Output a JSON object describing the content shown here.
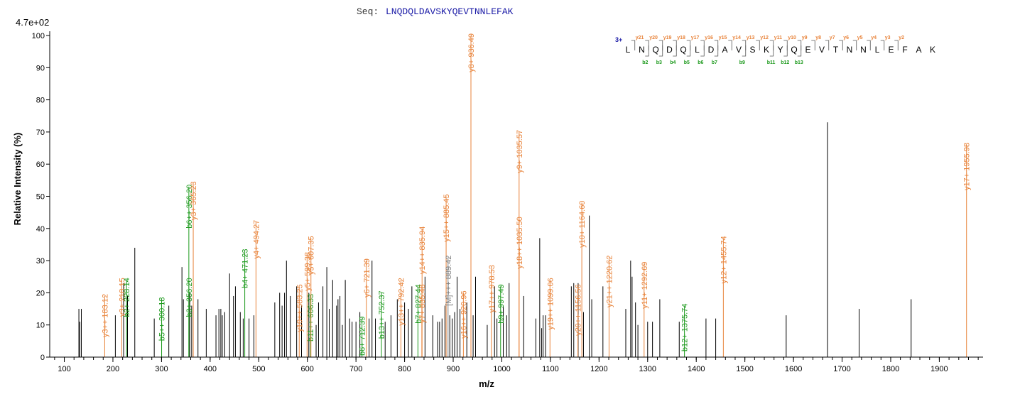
{
  "header": {
    "seq_label": "Seq:",
    "sequence": "LNQDQLDAVSKYQEVTNNLEFAK",
    "scale": "4.7e+02",
    "charge": "3+"
  },
  "colors": {
    "y": "#e8833a",
    "b": "#1e9a1e",
    "other": "#808080",
    "noise": "#000000",
    "charge": "#1a1aa6"
  },
  "chart_data": {
    "type": "bar",
    "title": "",
    "xlabel": "m/z",
    "ylabel": "Relative Intensity (%)",
    "xlim": [
      70,
      1990
    ],
    "ylim": [
      0,
      100
    ],
    "xticks": [
      100,
      200,
      300,
      400,
      500,
      600,
      700,
      800,
      900,
      1000,
      1100,
      1200,
      1300,
      1400,
      1500,
      1600,
      1700,
      1800,
      1900
    ],
    "yticks": [
      0,
      10,
      20,
      30,
      40,
      50,
      60,
      70,
      80,
      90,
      100
    ],
    "annotated_peaks": [
      {
        "mz": 183.12,
        "intensity": 19,
        "type": "y",
        "label": "y3++ 183.12"
      },
      {
        "mz": 218.15,
        "intensity": 24,
        "type": "y",
        "label": "y3+ 218.15"
      },
      {
        "mz": 228.14,
        "intensity": 24,
        "type": "b",
        "label": "b2+ 228.14"
      },
      {
        "mz": 300.18,
        "intensity": 18,
        "type": "b",
        "label": "b5++ 300.18"
      },
      {
        "mz": 356.2,
        "intensity": 24,
        "type": "b",
        "label": "b3+ 356.20"
      },
      {
        "mz": 356.2,
        "intensity": 53,
        "type": "b",
        "label": "b6++ 356.20"
      },
      {
        "mz": 365.23,
        "intensity": 54,
        "type": "y",
        "label": "y3+ 365.23"
      },
      {
        "mz": 471.23,
        "intensity": 33,
        "type": "b",
        "label": "b4+ 471.23"
      },
      {
        "mz": 494.27,
        "intensity": 42,
        "type": "y",
        "label": "y4+ 494.27"
      },
      {
        "mz": 583.25,
        "intensity": 22,
        "type": "y",
        "label": "y10++ 583.25"
      },
      {
        "mz": 599.38,
        "intensity": 32,
        "type": "y",
        "label": "y5+ 599.38"
      },
      {
        "mz": 606.33,
        "intensity": 19,
        "type": "b",
        "label": "b11++ 606.33"
      },
      {
        "mz": 607.35,
        "intensity": 37,
        "type": "y",
        "label": "y5+ 607.35"
      },
      {
        "mz": 712.39,
        "intensity": 12,
        "type": "b",
        "label": "b6+ 712.39"
      },
      {
        "mz": 721.39,
        "intensity": 30,
        "type": "y",
        "label": "y6+ 721.39"
      },
      {
        "mz": 752.37,
        "intensity": 20,
        "type": "b",
        "label": "b13++ 752.37"
      },
      {
        "mz": 792.42,
        "intensity": 24,
        "type": "y",
        "label": "y13++ 792.42"
      },
      {
        "mz": 827.44,
        "intensity": 22,
        "type": "b",
        "label": "b7+ 827.44"
      },
      {
        "mz": 835.48,
        "intensity": 22,
        "type": "y",
        "label": "y7+ 835.48"
      },
      {
        "mz": 835.94,
        "intensity": 40,
        "type": "y",
        "label": "y14++ 835.94"
      },
      {
        "mz": 885.45,
        "intensity": 50,
        "type": "y",
        "label": "y15++ 885.45"
      },
      {
        "mz": 889.42,
        "intensity": 31,
        "type": "other",
        "label": "[M]+++ 889.42"
      },
      {
        "mz": 920.96,
        "intensity": 20,
        "type": "y",
        "label": "y16++ 920.96"
      },
      {
        "mz": 936.49,
        "intensity": 100,
        "type": "y",
        "label": "y8+ 936.49"
      },
      {
        "mz": 978.53,
        "intensity": 28,
        "type": "y",
        "label": "y17++ 978.53"
      },
      {
        "mz": 997.49,
        "intensity": 22,
        "type": "b",
        "label": "b9+ 997.49"
      },
      {
        "mz": 1035.5,
        "intensity": 43,
        "type": "y",
        "label": "y18++ 1035.50"
      },
      {
        "mz": 1035.57,
        "intensity": 70,
        "type": "y",
        "label": "y9+ 1035.57"
      },
      {
        "mz": 1099.06,
        "intensity": 24,
        "type": "y",
        "label": "y19++ 1099.06"
      },
      {
        "mz": 1156.56,
        "intensity": 22,
        "type": "y",
        "label": "y20++ 1156.56"
      },
      {
        "mz": 1164.6,
        "intensity": 48,
        "type": "y",
        "label": "y10+ 1164.60"
      },
      {
        "mz": 1220.62,
        "intensity": 31,
        "type": "y",
        "label": "y21++ 1220.62"
      },
      {
        "mz": 1292.69,
        "intensity": 29,
        "type": "y",
        "label": "y11+ 1292.69"
      },
      {
        "mz": 1375.74,
        "intensity": 16,
        "type": "b",
        "label": "b12+ 1375.74"
      },
      {
        "mz": 1455.74,
        "intensity": 37,
        "type": "y",
        "label": "y12+ 1455.74"
      },
      {
        "mz": 1955.98,
        "intensity": 66,
        "type": "y",
        "label": "y17+ 1955.98"
      }
    ],
    "unannotated_peaks": [
      [
        130,
        15
      ],
      [
        132,
        11
      ],
      [
        135,
        15
      ],
      [
        205,
        13
      ],
      [
        222,
        23
      ],
      [
        230,
        19
      ],
      [
        245,
        34
      ],
      [
        285,
        12
      ],
      [
        315,
        16
      ],
      [
        342,
        28
      ],
      [
        345,
        18
      ],
      [
        358,
        20
      ],
      [
        362,
        16
      ],
      [
        375,
        18
      ],
      [
        392,
        15
      ],
      [
        412,
        13
      ],
      [
        418,
        15
      ],
      [
        422,
        15
      ],
      [
        425,
        13
      ],
      [
        430,
        14
      ],
      [
        440,
        26
      ],
      [
        448,
        19
      ],
      [
        452,
        22
      ],
      [
        462,
        14
      ],
      [
        468,
        12
      ],
      [
        480,
        12
      ],
      [
        490,
        13
      ],
      [
        533,
        17
      ],
      [
        543,
        20
      ],
      [
        548,
        16
      ],
      [
        553,
        20
      ],
      [
        557,
        30
      ],
      [
        565,
        19
      ],
      [
        578,
        22
      ],
      [
        588,
        16
      ],
      [
        603,
        20
      ],
      [
        618,
        10
      ],
      [
        623,
        17
      ],
      [
        632,
        22
      ],
      [
        640,
        28
      ],
      [
        645,
        15
      ],
      [
        652,
        24
      ],
      [
        660,
        16
      ],
      [
        663,
        18
      ],
      [
        667,
        19
      ],
      [
        672,
        10
      ],
      [
        678,
        24
      ],
      [
        687,
        12
      ],
      [
        692,
        11
      ],
      [
        700,
        11
      ],
      [
        708,
        14
      ],
      [
        727,
        12
      ],
      [
        733,
        30
      ],
      [
        740,
        12
      ],
      [
        760,
        11
      ],
      [
        772,
        13
      ],
      [
        785,
        18
      ],
      [
        800,
        17
      ],
      [
        808,
        15
      ],
      [
        815,
        22
      ],
      [
        842,
        25
      ],
      [
        858,
        13
      ],
      [
        868,
        11
      ],
      [
        872,
        11
      ],
      [
        877,
        12
      ],
      [
        883,
        16
      ],
      [
        893,
        13
      ],
      [
        898,
        12
      ],
      [
        903,
        14
      ],
      [
        908,
        25
      ],
      [
        914,
        15
      ],
      [
        928,
        17
      ],
      [
        941,
        13
      ],
      [
        946,
        25
      ],
      [
        970,
        10
      ],
      [
        985,
        22
      ],
      [
        990,
        12
      ],
      [
        1003,
        16
      ],
      [
        1010,
        13
      ],
      [
        1015,
        23
      ],
      [
        1045,
        19
      ],
      [
        1070,
        12
      ],
      [
        1078,
        37
      ],
      [
        1082,
        9
      ],
      [
        1085,
        13
      ],
      [
        1090,
        13
      ],
      [
        1143,
        22
      ],
      [
        1148,
        23
      ],
      [
        1157,
        23
      ],
      [
        1168,
        14
      ],
      [
        1180,
        44
      ],
      [
        1185,
        18
      ],
      [
        1208,
        22
      ],
      [
        1255,
        15
      ],
      [
        1265,
        30
      ],
      [
        1268,
        25
      ],
      [
        1275,
        17
      ],
      [
        1280,
        10
      ],
      [
        1300,
        11
      ],
      [
        1310,
        11
      ],
      [
        1325,
        18
      ],
      [
        1365,
        11
      ],
      [
        1420,
        12
      ],
      [
        1440,
        12
      ],
      [
        1585,
        13
      ],
      [
        1670,
        73
      ],
      [
        1735,
        15
      ],
      [
        1842,
        18
      ]
    ]
  },
  "fragment_map": {
    "residues": [
      "L",
      "N",
      "Q",
      "D",
      "Q",
      "L",
      "D",
      "A",
      "V",
      "S",
      "K",
      "Y",
      "Q",
      "E",
      "V",
      "T",
      "N",
      "N",
      "L",
      "E",
      "F",
      "A",
      "K"
    ],
    "y_ions": [
      {
        "after": 0,
        "label": "y21"
      },
      {
        "after": 1,
        "label": "y20"
      },
      {
        "after": 2,
        "label": "y19"
      },
      {
        "after": 3,
        "label": "y18"
      },
      {
        "after": 4,
        "label": "y17"
      },
      {
        "after": 5,
        "label": "y16"
      },
      {
        "after": 6,
        "label": "y15"
      },
      {
        "after": 7,
        "label": "y14"
      },
      {
        "after": 8,
        "label": "y13"
      },
      {
        "after": 9,
        "label": "y12"
      },
      {
        "after": 10,
        "label": "y11"
      },
      {
        "after": 11,
        "label": "y10"
      },
      {
        "after": 12,
        "label": "y9"
      },
      {
        "after": 13,
        "label": "y8"
      },
      {
        "after": 14,
        "label": "y7"
      },
      {
        "after": 15,
        "label": "y6"
      },
      {
        "after": 16,
        "label": "y5"
      },
      {
        "after": 17,
        "label": "y4"
      },
      {
        "after": 18,
        "label": "y3"
      },
      {
        "after": 19,
        "label": "y2"
      }
    ],
    "b_ions": [
      {
        "after": 1,
        "label": "b2"
      },
      {
        "after": 2,
        "label": "b3"
      },
      {
        "after": 3,
        "label": "b4"
      },
      {
        "after": 4,
        "label": "b5"
      },
      {
        "after": 5,
        "label": "b6"
      },
      {
        "after": 6,
        "label": "b7"
      },
      {
        "after": 8,
        "label": "b9"
      },
      {
        "after": 10,
        "label": "b11"
      },
      {
        "after": 11,
        "label": "b12"
      },
      {
        "after": 12,
        "label": "b13"
      }
    ]
  }
}
